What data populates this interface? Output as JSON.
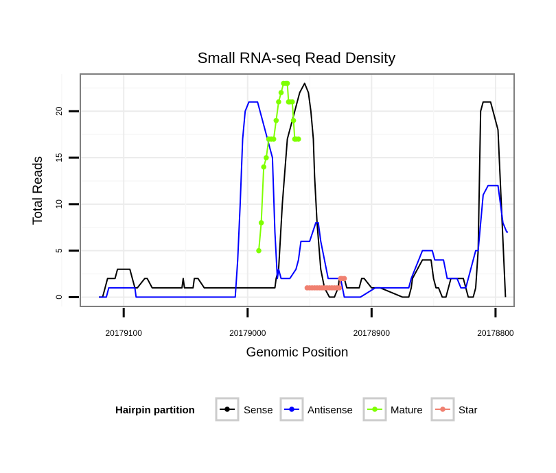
{
  "chart_data": {
    "type": "line",
    "title": "Small RNA-seq Read Density",
    "xlabel": "Genomic Position",
    "ylabel": "Total Reads",
    "xlim": [
      20179135,
      20178785
    ],
    "ylim": [
      -1,
      24
    ],
    "x_reversed": true,
    "xticks": [
      20179100,
      20179000,
      20178900,
      20178800
    ],
    "xtick_labels": [
      "20179100",
      "20179000",
      "20178900",
      "20178800"
    ],
    "yticks": [
      0,
      5,
      10,
      15,
      20
    ],
    "ytick_labels": [
      "0",
      "5",
      "10",
      "15",
      "20"
    ],
    "grid": true,
    "legend_title": "Hairpin partition",
    "legend_position": "bottom",
    "series": [
      {
        "name": "Sense",
        "color": "#000000",
        "style": "line",
        "x": [
          20179120,
          20179117,
          20179115,
          20179113,
          20179107,
          20179105,
          20179095,
          20179093,
          20179091,
          20179089,
          20179083,
          20179081,
          20179077,
          20179074,
          20179053,
          20179052,
          20179051,
          20179050,
          20179044,
          20179043,
          20179040,
          20179035,
          20178983,
          20178978,
          20178977,
          20178975,
          20178972,
          20178968,
          20178962,
          20178958,
          20178954,
          20178951,
          20178949,
          20178947,
          20178946,
          20178944,
          20178941,
          20178938,
          20178934,
          20178930,
          20178927,
          20178926,
          20178924,
          20178922,
          20178920,
          20178915,
          20178910,
          20178908,
          20178906,
          20178900,
          20178893,
          20178875,
          20178870,
          20178868,
          20178867,
          20178859,
          20178855,
          20178852,
          20178850,
          20178848,
          20178846,
          20178843,
          20178840,
          20178836,
          20178832,
          20178829,
          20178826,
          20178824,
          20178822,
          20178818,
          20178816,
          20178814,
          20178812,
          20178810,
          20178808,
          20178806,
          20178804,
          20178802,
          20178798,
          20178792
        ],
        "y": [
          0,
          0,
          1,
          2,
          2,
          3,
          3,
          2,
          1,
          1,
          2,
          2,
          1,
          1,
          1,
          2,
          1,
          1,
          1,
          2,
          2,
          1,
          1,
          1,
          2,
          3,
          10,
          17,
          20,
          22,
          23,
          22,
          20,
          17,
          13,
          8,
          3,
          1,
          0,
          0,
          1,
          2,
          2,
          2,
          1,
          1,
          1,
          2,
          2,
          1,
          1,
          0,
          0,
          1,
          2,
          4,
          4,
          4,
          2,
          1,
          1,
          0,
          0,
          2,
          2,
          2,
          2,
          1,
          0,
          0,
          1,
          5,
          20,
          21,
          21,
          21,
          21,
          20,
          18,
          0
        ]
      },
      {
        "name": "Antisense",
        "color": "#0000ff",
        "style": "line",
        "x": [
          20179120,
          20179114,
          20179112,
          20179100,
          20179095,
          20179093,
          20179091,
          20179090,
          20179050,
          20179010,
          20179008,
          20179006,
          20179004,
          20179002,
          20178999,
          20178996,
          20178992,
          20178980,
          20178978,
          20178976,
          20178975,
          20178973,
          20178970,
          20178966,
          20178961,
          20178959,
          20178957,
          20178950,
          20178945,
          20178943,
          20178941,
          20178938,
          20178935,
          20178925,
          20178922,
          20178916,
          20178909,
          20178897,
          20178891,
          20178883,
          20178881,
          20178872,
          20178870,
          20178868,
          20178862,
          20178859,
          20178856,
          20178851,
          20178849,
          20178842,
          20178839,
          20178831,
          20178828,
          20178826,
          20178824,
          20178816,
          20178814,
          20178810,
          20178806,
          20178798,
          20178797,
          20178794,
          20178791,
          20178790
        ],
        "y": [
          0,
          0,
          1,
          1,
          1,
          1,
          1,
          0,
          0,
          0,
          4,
          10,
          17,
          20,
          21,
          21,
          21,
          15,
          7,
          2,
          3,
          2,
          2,
          2,
          3,
          4,
          6,
          6,
          8,
          8,
          6,
          4,
          2,
          2,
          0,
          0,
          0,
          1,
          1,
          1,
          1,
          1,
          1,
          2,
          4,
          5,
          5,
          5,
          4,
          4,
          2,
          2,
          1,
          1,
          1,
          5,
          5,
          11,
          12,
          12,
          11,
          8,
          7,
          7
        ]
      },
      {
        "name": "Mature",
        "color": "#7fff00",
        "style": "line+points",
        "x": [
          20178991,
          20178989,
          20178987,
          20178985,
          20178983,
          20178981,
          20178979,
          20178977,
          20178975,
          20178973,
          20178971,
          20178969,
          20178968,
          20178967,
          20178966,
          20178964,
          20178963,
          20178962,
          20178961,
          20178959
        ],
        "y": [
          5,
          8,
          14,
          15,
          17,
          17,
          17,
          19,
          21,
          22,
          23,
          23,
          23,
          21,
          21,
          21,
          19,
          17,
          17,
          17
        ]
      },
      {
        "name": "Star",
        "color": "#f08070",
        "style": "line+points",
        "x": [
          20178952,
          20178950,
          20178948,
          20178946,
          20178944,
          20178942,
          20178940,
          20178938,
          20178936,
          20178934,
          20178932,
          20178930,
          20178928,
          20178926,
          20178925,
          20178924,
          20178922
        ],
        "y": [
          1,
          1,
          1,
          1,
          1,
          1,
          1,
          1,
          1,
          1,
          1,
          1,
          1,
          1,
          2,
          2,
          2
        ]
      }
    ]
  }
}
